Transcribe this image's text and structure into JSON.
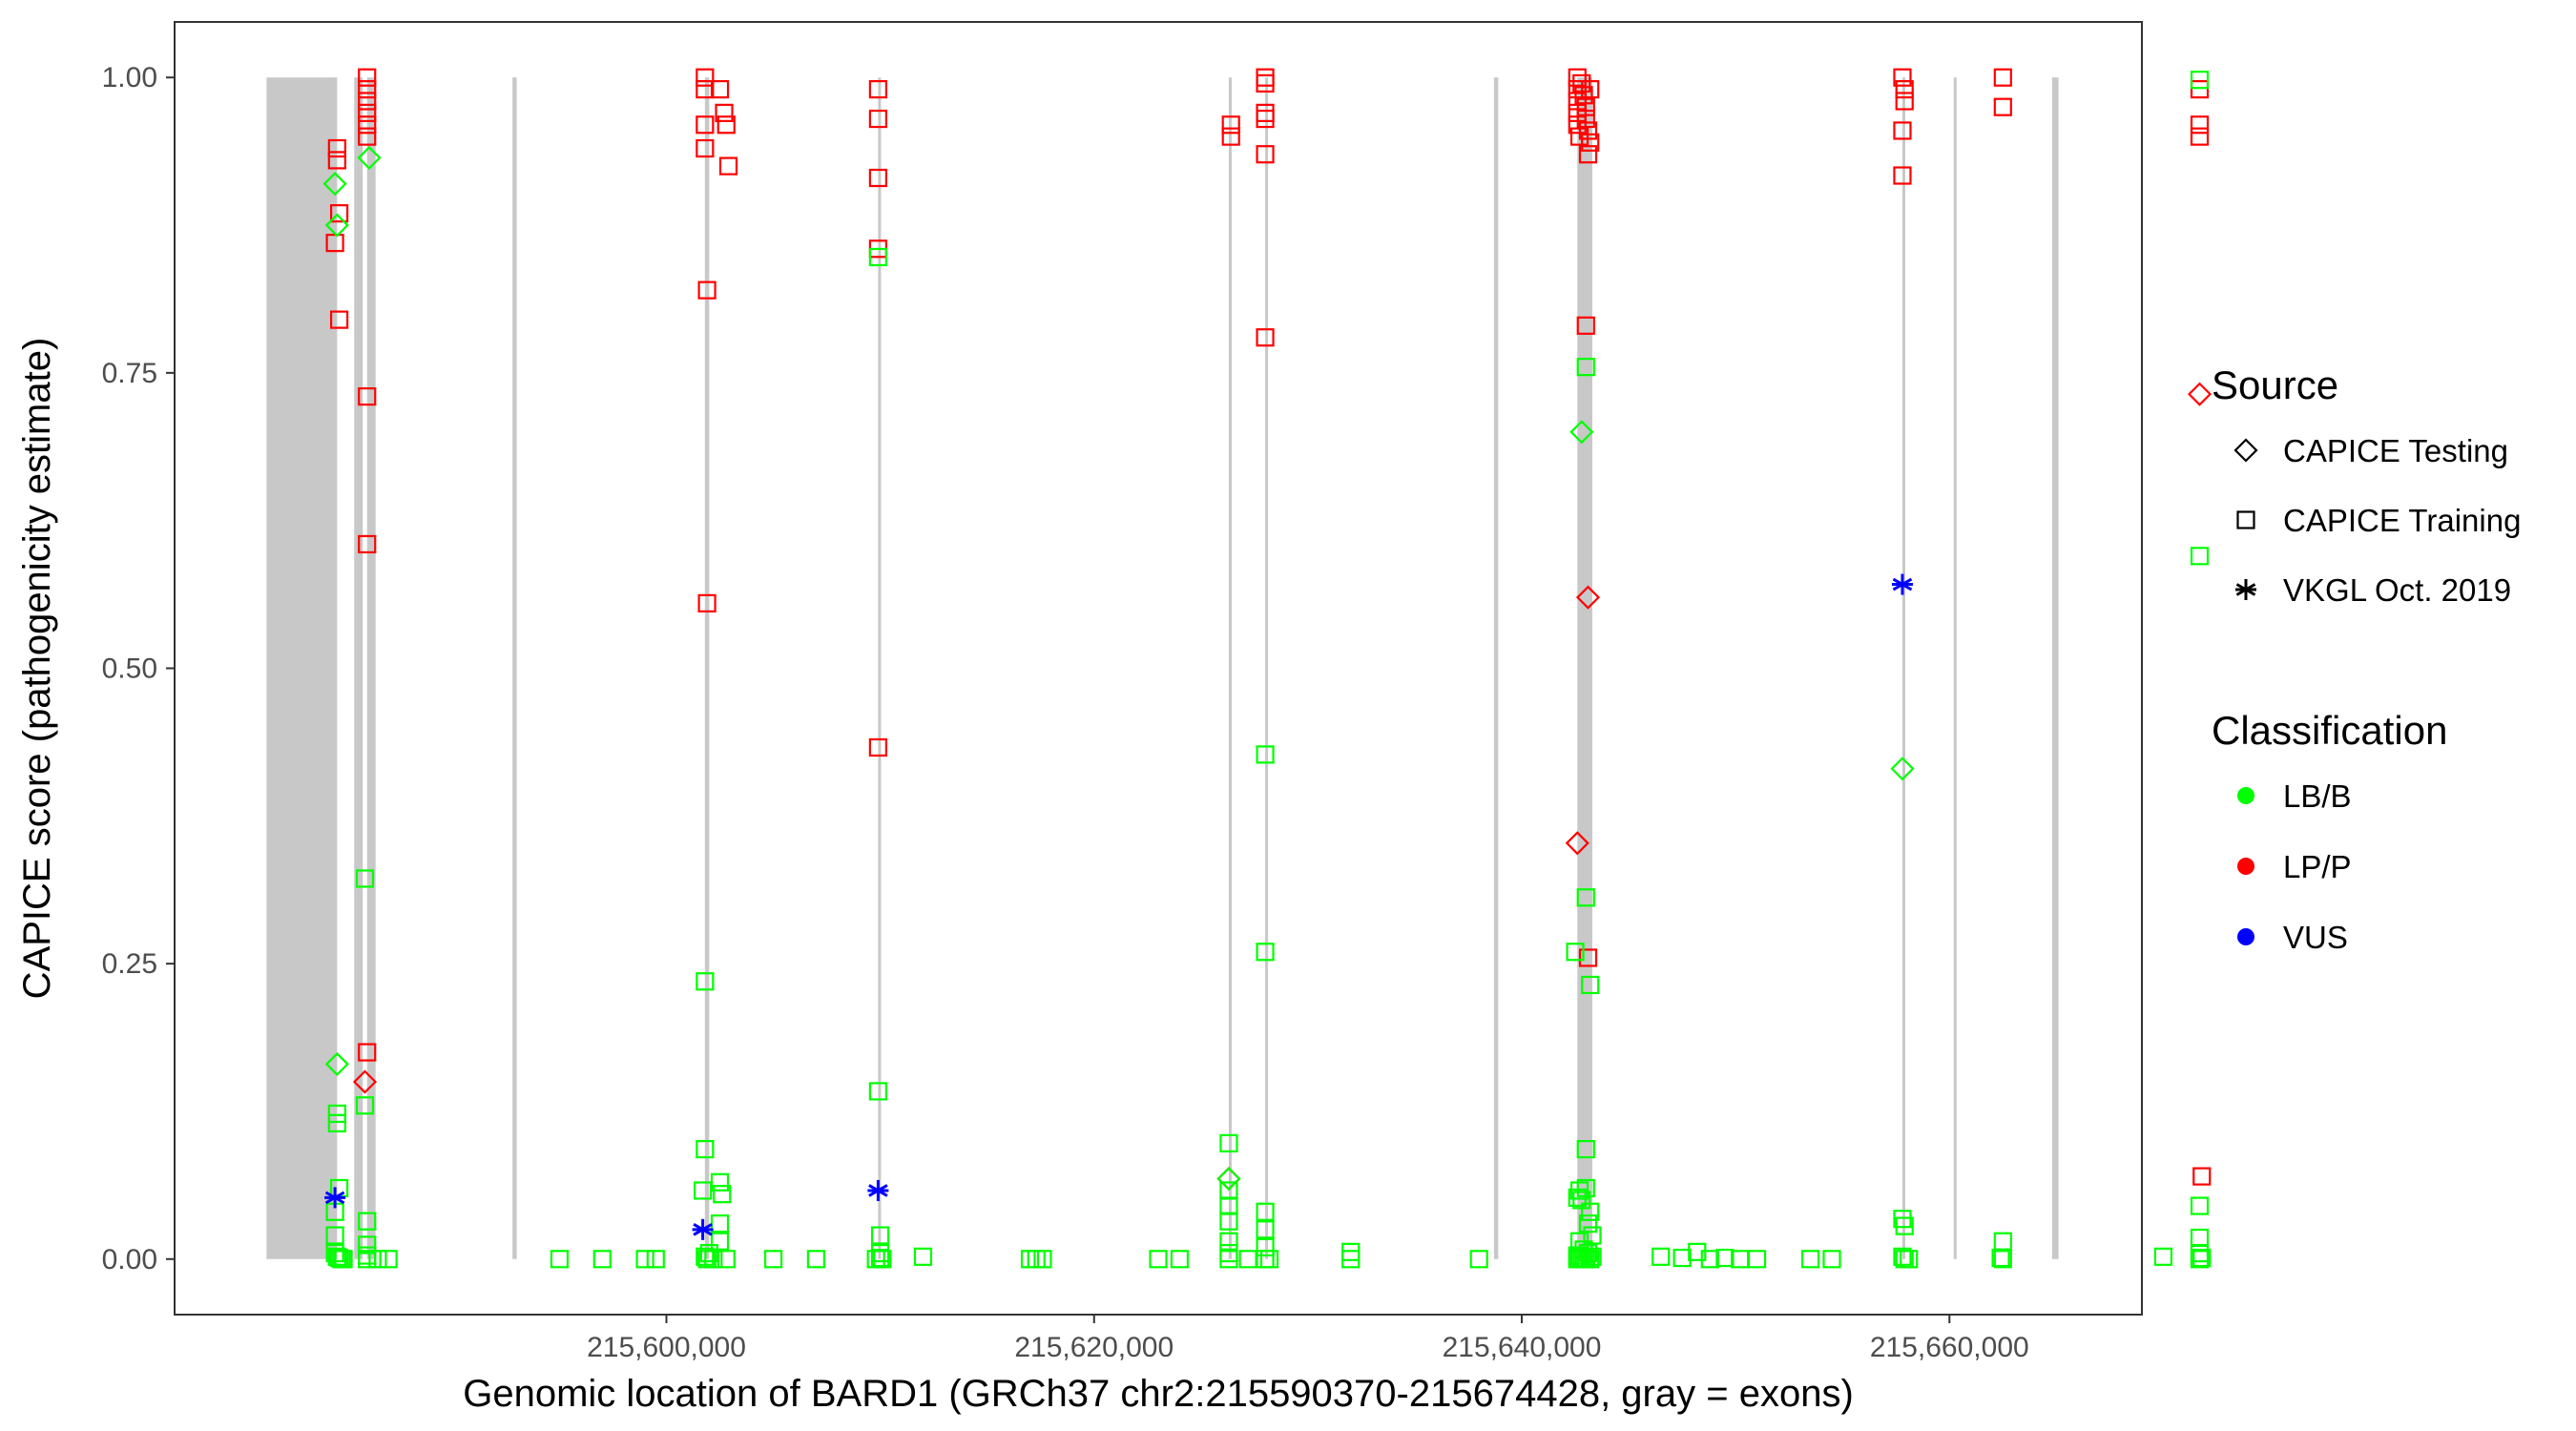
{
  "chart_data": {
    "type": "scatter",
    "title": "",
    "xlabel": "Genomic location of BARD1 (GRCh37 chr2:215590370-215674428, gray = exons)",
    "ylabel": "CAPICE score (pathogenicity estimate)",
    "xlim": [
      215577000,
      215669000
    ],
    "ylim": [
      -0.047,
      1.047
    ],
    "x_ticks": [
      215600000,
      215620000,
      215640000,
      215660000
    ],
    "x_tick_labels": [
      "215,600,000",
      "215,620,000",
      "215,640,000",
      "215,660,000"
    ],
    "y_ticks": [
      0,
      0.25,
      0.5,
      0.75,
      1.0
    ],
    "y_tick_labels": [
      "0.00",
      "0.25",
      "0.50",
      "0.75",
      "1.00"
    ],
    "grid": false,
    "exons": [
      {
        "start": 215581300,
        "end": 215584600
      },
      {
        "start": 215585400,
        "end": 215585800
      },
      {
        "start": 215586000,
        "end": 215586400
      },
      {
        "start": 215601800,
        "end": 215602000
      },
      {
        "start": 215609900,
        "end": 215610000
      },
      {
        "start": 215626300,
        "end": 215626400
      },
      {
        "start": 215628000,
        "end": 215628100
      },
      {
        "start": 215642600,
        "end": 215643300
      },
      {
        "start": 215660200,
        "end": 215660300
      },
      {
        "start": 215664800,
        "end": 215665100
      },
      {
        "start": 215592800,
        "end": 215593000
      },
      {
        "start": 215638700,
        "end": 215638900
      },
      {
        "start": 215657800,
        "end": 215657900
      }
    ],
    "legend": [
      {
        "title": "Source",
        "items": [
          {
            "label": "CAPICE Testing",
            "shape": "diamond"
          },
          {
            "label": "CAPICE Training",
            "shape": "square"
          },
          {
            "label": "VKGL Oct. 2019",
            "shape": "asterisk"
          }
        ]
      },
      {
        "title": "Classification",
        "items": [
          {
            "label": "LB/B",
            "color": "#00ff00"
          },
          {
            "label": "LP/P",
            "color": "#ff0000"
          },
          {
            "label": "VUS",
            "color": "#0000ff"
          }
        ]
      }
    ],
    "legend_position": "right",
    "colors": {
      "LB/B": "#00ff00",
      "LP/P": "#ff0000",
      "VUS": "#0000ff"
    },
    "series": [
      {
        "name": "CAPICE Training",
        "classification": "LP/P",
        "shape": "square",
        "color": "#ff0000",
        "points": [
          [
            215584600,
            0.93
          ],
          [
            215584600,
            0.94
          ],
          [
            215584500,
            0.86
          ],
          [
            215584700,
            0.885
          ],
          [
            215584700,
            0.795
          ],
          [
            215586000,
            1.0
          ],
          [
            215586000,
            0.99
          ],
          [
            215586000,
            0.98
          ],
          [
            215586000,
            0.97
          ],
          [
            215586000,
            0.96
          ],
          [
            215586000,
            0.95
          ],
          [
            215586000,
            0.73
          ],
          [
            215586000,
            0.605
          ],
          [
            215586000,
            0.175
          ],
          [
            215601800,
            1.0
          ],
          [
            215601800,
            0.99
          ],
          [
            215601800,
            0.96
          ],
          [
            215601800,
            0.94
          ],
          [
            215601900,
            0.82
          ],
          [
            215601900,
            0.555
          ],
          [
            215602500,
            0.99
          ],
          [
            215602700,
            0.97
          ],
          [
            215602800,
            0.96
          ],
          [
            215602900,
            0.925
          ],
          [
            215609900,
            0.99
          ],
          [
            215609900,
            0.965
          ],
          [
            215609900,
            0.915
          ],
          [
            215609900,
            0.855
          ],
          [
            215609900,
            0.433
          ],
          [
            215626400,
            0.96
          ],
          [
            215626400,
            0.95
          ],
          [
            215628000,
            1.0
          ],
          [
            215628000,
            0.995
          ],
          [
            215628000,
            0.97
          ],
          [
            215628000,
            0.965
          ],
          [
            215628000,
            0.935
          ],
          [
            215628000,
            0.78
          ],
          [
            215642600,
            1.0
          ],
          [
            215642600,
            0.99
          ],
          [
            215642600,
            0.98
          ],
          [
            215642600,
            0.97
          ],
          [
            215642600,
            0.96
          ],
          [
            215642700,
            0.95
          ],
          [
            215642800,
            0.995
          ],
          [
            215642900,
            0.985
          ],
          [
            215643000,
            0.975
          ],
          [
            215643000,
            0.965
          ],
          [
            215643100,
            0.955
          ],
          [
            215643100,
            0.935
          ],
          [
            215643200,
            0.99
          ],
          [
            215643200,
            0.945
          ],
          [
            215643000,
            0.79
          ],
          [
            215643100,
            0.255
          ],
          [
            215657800,
            1.0
          ],
          [
            215657900,
            0.99
          ],
          [
            215657900,
            0.98
          ],
          [
            215657800,
            0.955
          ],
          [
            215657800,
            0.917
          ],
          [
            215662500,
            1.0
          ],
          [
            215662500,
            0.975
          ],
          [
            215671700,
            0.99
          ],
          [
            215671700,
            0.96
          ],
          [
            215671700,
            0.95
          ],
          [
            215671800,
            0.07
          ]
        ]
      },
      {
        "name": "CAPICE Training",
        "classification": "LB/B",
        "shape": "square",
        "color": "#00ff00",
        "points": [
          [
            215584600,
            0.123
          ],
          [
            215584600,
            0.115
          ],
          [
            215584700,
            0.06
          ],
          [
            215584500,
            0.04
          ],
          [
            215584500,
            0.02
          ],
          [
            215584500,
            0.005
          ],
          [
            215584600,
            0.002
          ],
          [
            215584700,
            0.001
          ],
          [
            215584800,
            0.0
          ],
          [
            215584900,
            0.0
          ],
          [
            215585900,
            0.322
          ],
          [
            215585900,
            0.13
          ],
          [
            215586000,
            0.032
          ],
          [
            215586000,
            0.012
          ],
          [
            215586000,
            0.003
          ],
          [
            215586000,
            0.0
          ],
          [
            215586500,
            0.0
          ],
          [
            215587000,
            0.0
          ],
          [
            215595000,
            0.0
          ],
          [
            215597000,
            0.0
          ],
          [
            215599000,
            0.0
          ],
          [
            215599500,
            0.0
          ],
          [
            215601800,
            0.235
          ],
          [
            215601800,
            0.093
          ],
          [
            215601700,
            0.058
          ],
          [
            215602500,
            0.065
          ],
          [
            215602600,
            0.055
          ],
          [
            215602500,
            0.03
          ],
          [
            215602500,
            0.015
          ],
          [
            215602000,
            0.005
          ],
          [
            215601800,
            0.002
          ],
          [
            215601900,
            0.0
          ],
          [
            215602200,
            0.0
          ],
          [
            215602800,
            0.0
          ],
          [
            215605000,
            0.0
          ],
          [
            215607000,
            0.0
          ],
          [
            215609900,
            0.848
          ],
          [
            215609900,
            0.142
          ],
          [
            215610000,
            0.02
          ],
          [
            215610000,
            0.005
          ],
          [
            215610000,
            0.001
          ],
          [
            215609800,
            0.0
          ],
          [
            215610100,
            0.0
          ],
          [
            215612000,
            0.002
          ],
          [
            215617000,
            0.0
          ],
          [
            215617300,
            0.0
          ],
          [
            215617600,
            0.0
          ],
          [
            215623000,
            0.0
          ],
          [
            215624000,
            0.0
          ],
          [
            215626300,
            0.098
          ],
          [
            215626300,
            0.058
          ],
          [
            215626300,
            0.045
          ],
          [
            215626300,
            0.032
          ],
          [
            215626300,
            0.015
          ],
          [
            215626300,
            0.005
          ],
          [
            215626300,
            0.0
          ],
          [
            215627200,
            0.0
          ],
          [
            215628000,
            0.427
          ],
          [
            215628000,
            0.26
          ],
          [
            215628000,
            0.04
          ],
          [
            215628000,
            0.025
          ],
          [
            215628000,
            0.01
          ],
          [
            215628000,
            0.0
          ],
          [
            215628200,
            0.0
          ],
          [
            215632000,
            0.006
          ],
          [
            215632000,
            0.0
          ],
          [
            215638000,
            0.0
          ],
          [
            215642500,
            0.26
          ],
          [
            215643000,
            0.755
          ],
          [
            215643000,
            0.306
          ],
          [
            215643200,
            0.232
          ],
          [
            215643000,
            0.093
          ],
          [
            215642700,
            0.058
          ],
          [
            215642600,
            0.052
          ],
          [
            215643000,
            0.06
          ],
          [
            215642800,
            0.05
          ],
          [
            215643200,
            0.04
          ],
          [
            215643100,
            0.03
          ],
          [
            215643300,
            0.02
          ],
          [
            215642700,
            0.015
          ],
          [
            215642900,
            0.008
          ],
          [
            215643100,
            0.005
          ],
          [
            215642600,
            0.003
          ],
          [
            215643300,
            0.002
          ],
          [
            215642800,
            0.001
          ],
          [
            215642600,
            0.0
          ],
          [
            215642900,
            0.0
          ],
          [
            215643200,
            0.0
          ],
          [
            215643000,
            0.0
          ],
          [
            215642700,
            0.0
          ],
          [
            215646500,
            0.002
          ],
          [
            215647500,
            0.001
          ],
          [
            215648200,
            0.006
          ],
          [
            215648800,
            0.0
          ],
          [
            215649500,
            0.001
          ],
          [
            215650200,
            0.0
          ],
          [
            215651000,
            0.0
          ],
          [
            215653500,
            0.0
          ],
          [
            215654500,
            0.0
          ],
          [
            215657800,
            0.034
          ],
          [
            215657900,
            0.028
          ],
          [
            215657800,
            0.002
          ],
          [
            215657900,
            0.0
          ],
          [
            215658100,
            0.0
          ],
          [
            215662500,
            0.015
          ],
          [
            215662500,
            0.0
          ],
          [
            215662400,
            0.001
          ],
          [
            215670000,
            0.002
          ],
          [
            215671700,
            0.998
          ],
          [
            215671700,
            0.595
          ],
          [
            215671700,
            0.045
          ],
          [
            215671700,
            0.018
          ],
          [
            215671700,
            0.005
          ],
          [
            215671700,
            0.0
          ],
          [
            215671800,
            0.001
          ]
        ]
      },
      {
        "name": "CAPICE Testing",
        "classification": "LP/P",
        "shape": "diamond",
        "color": "#ff0000",
        "points": [
          [
            215585900,
            0.15
          ],
          [
            215626300,
            0.068
          ],
          [
            215642600,
            0.352
          ],
          [
            215643100,
            0.56
          ],
          [
            215671700,
            0.732
          ]
        ]
      },
      {
        "name": "CAPICE Testing",
        "classification": "LB/B",
        "shape": "diamond",
        "color": "#00ff00",
        "points": [
          [
            215584500,
            0.91
          ],
          [
            215584600,
            0.875
          ],
          [
            215584600,
            0.165
          ],
          [
            215586100,
            0.932
          ],
          [
            215642800,
            0.7
          ],
          [
            215657800,
            0.415
          ],
          [
            215626300,
            0.068
          ]
        ]
      },
      {
        "name": "VKGL Oct. 2019",
        "classification": "VUS",
        "shape": "asterisk",
        "color": "#0000ff",
        "points": [
          [
            215584500,
            0.052
          ],
          [
            215601700,
            0.025
          ],
          [
            215609900,
            0.058
          ],
          [
            215657800,
            0.571
          ]
        ]
      }
    ]
  }
}
